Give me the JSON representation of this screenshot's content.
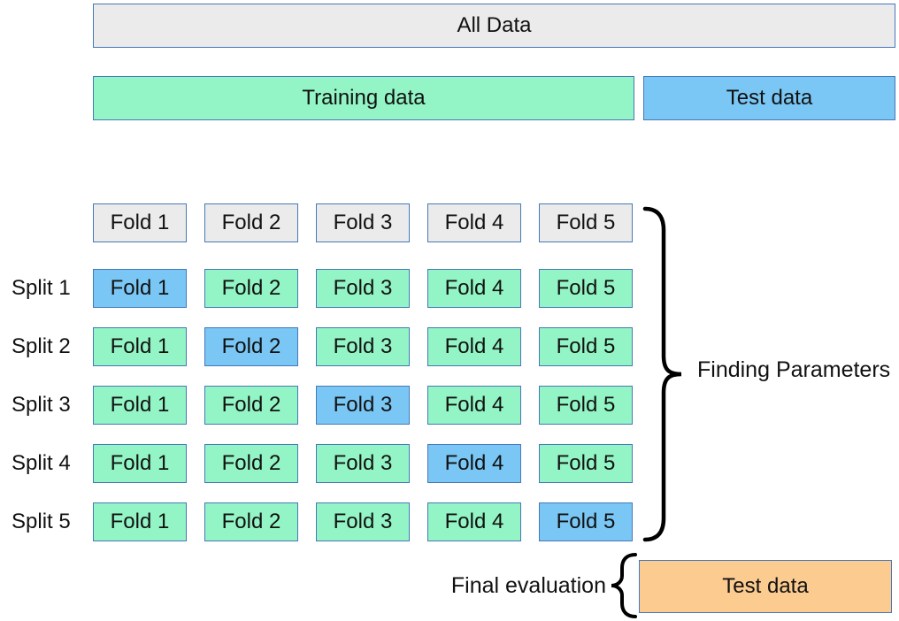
{
  "top": {
    "all_data": "All Data",
    "training_data": "Training data",
    "test_data": "Test data"
  },
  "grid": {
    "header": [
      "Fold 1",
      "Fold 2",
      "Fold 3",
      "Fold 4",
      "Fold 5"
    ],
    "splits": [
      {
        "label": "Split 1",
        "cells": [
          {
            "text": "Fold 1",
            "role": "test"
          },
          {
            "text": "Fold 2",
            "role": "train"
          },
          {
            "text": "Fold 3",
            "role": "train"
          },
          {
            "text": "Fold 4",
            "role": "train"
          },
          {
            "text": "Fold 5",
            "role": "train"
          }
        ]
      },
      {
        "label": "Split 2",
        "cells": [
          {
            "text": "Fold 1",
            "role": "train"
          },
          {
            "text": "Fold 2",
            "role": "test"
          },
          {
            "text": "Fold 3",
            "role": "train"
          },
          {
            "text": "Fold 4",
            "role": "train"
          },
          {
            "text": "Fold 5",
            "role": "train"
          }
        ]
      },
      {
        "label": "Split 3",
        "cells": [
          {
            "text": "Fold 1",
            "role": "train"
          },
          {
            "text": "Fold 2",
            "role": "train"
          },
          {
            "text": "Fold 3",
            "role": "test"
          },
          {
            "text": "Fold 4",
            "role": "train"
          },
          {
            "text": "Fold 5",
            "role": "train"
          }
        ]
      },
      {
        "label": "Split 4",
        "cells": [
          {
            "text": "Fold 1",
            "role": "train"
          },
          {
            "text": "Fold 2",
            "role": "train"
          },
          {
            "text": "Fold 3",
            "role": "train"
          },
          {
            "text": "Fold 4",
            "role": "test"
          },
          {
            "text": "Fold 5",
            "role": "train"
          }
        ]
      },
      {
        "label": "Split 5",
        "cells": [
          {
            "text": "Fold 1",
            "role": "train"
          },
          {
            "text": "Fold 2",
            "role": "train"
          },
          {
            "text": "Fold 3",
            "role": "train"
          },
          {
            "text": "Fold 4",
            "role": "train"
          },
          {
            "text": "Fold 5",
            "role": "test"
          }
        ]
      }
    ]
  },
  "annotations": {
    "finding_parameters": "Finding Parameters",
    "final_evaluation": "Final evaluation",
    "final_test_data": "Test data"
  },
  "colors": {
    "train_green": "#93f5c6",
    "test_blue": "#7ac7f5",
    "holdout_orange": "#fccb90",
    "neutral_gray": "#ebebeb",
    "box_border": "#4678b8",
    "brace_black": "#000000",
    "text": "#111111"
  }
}
